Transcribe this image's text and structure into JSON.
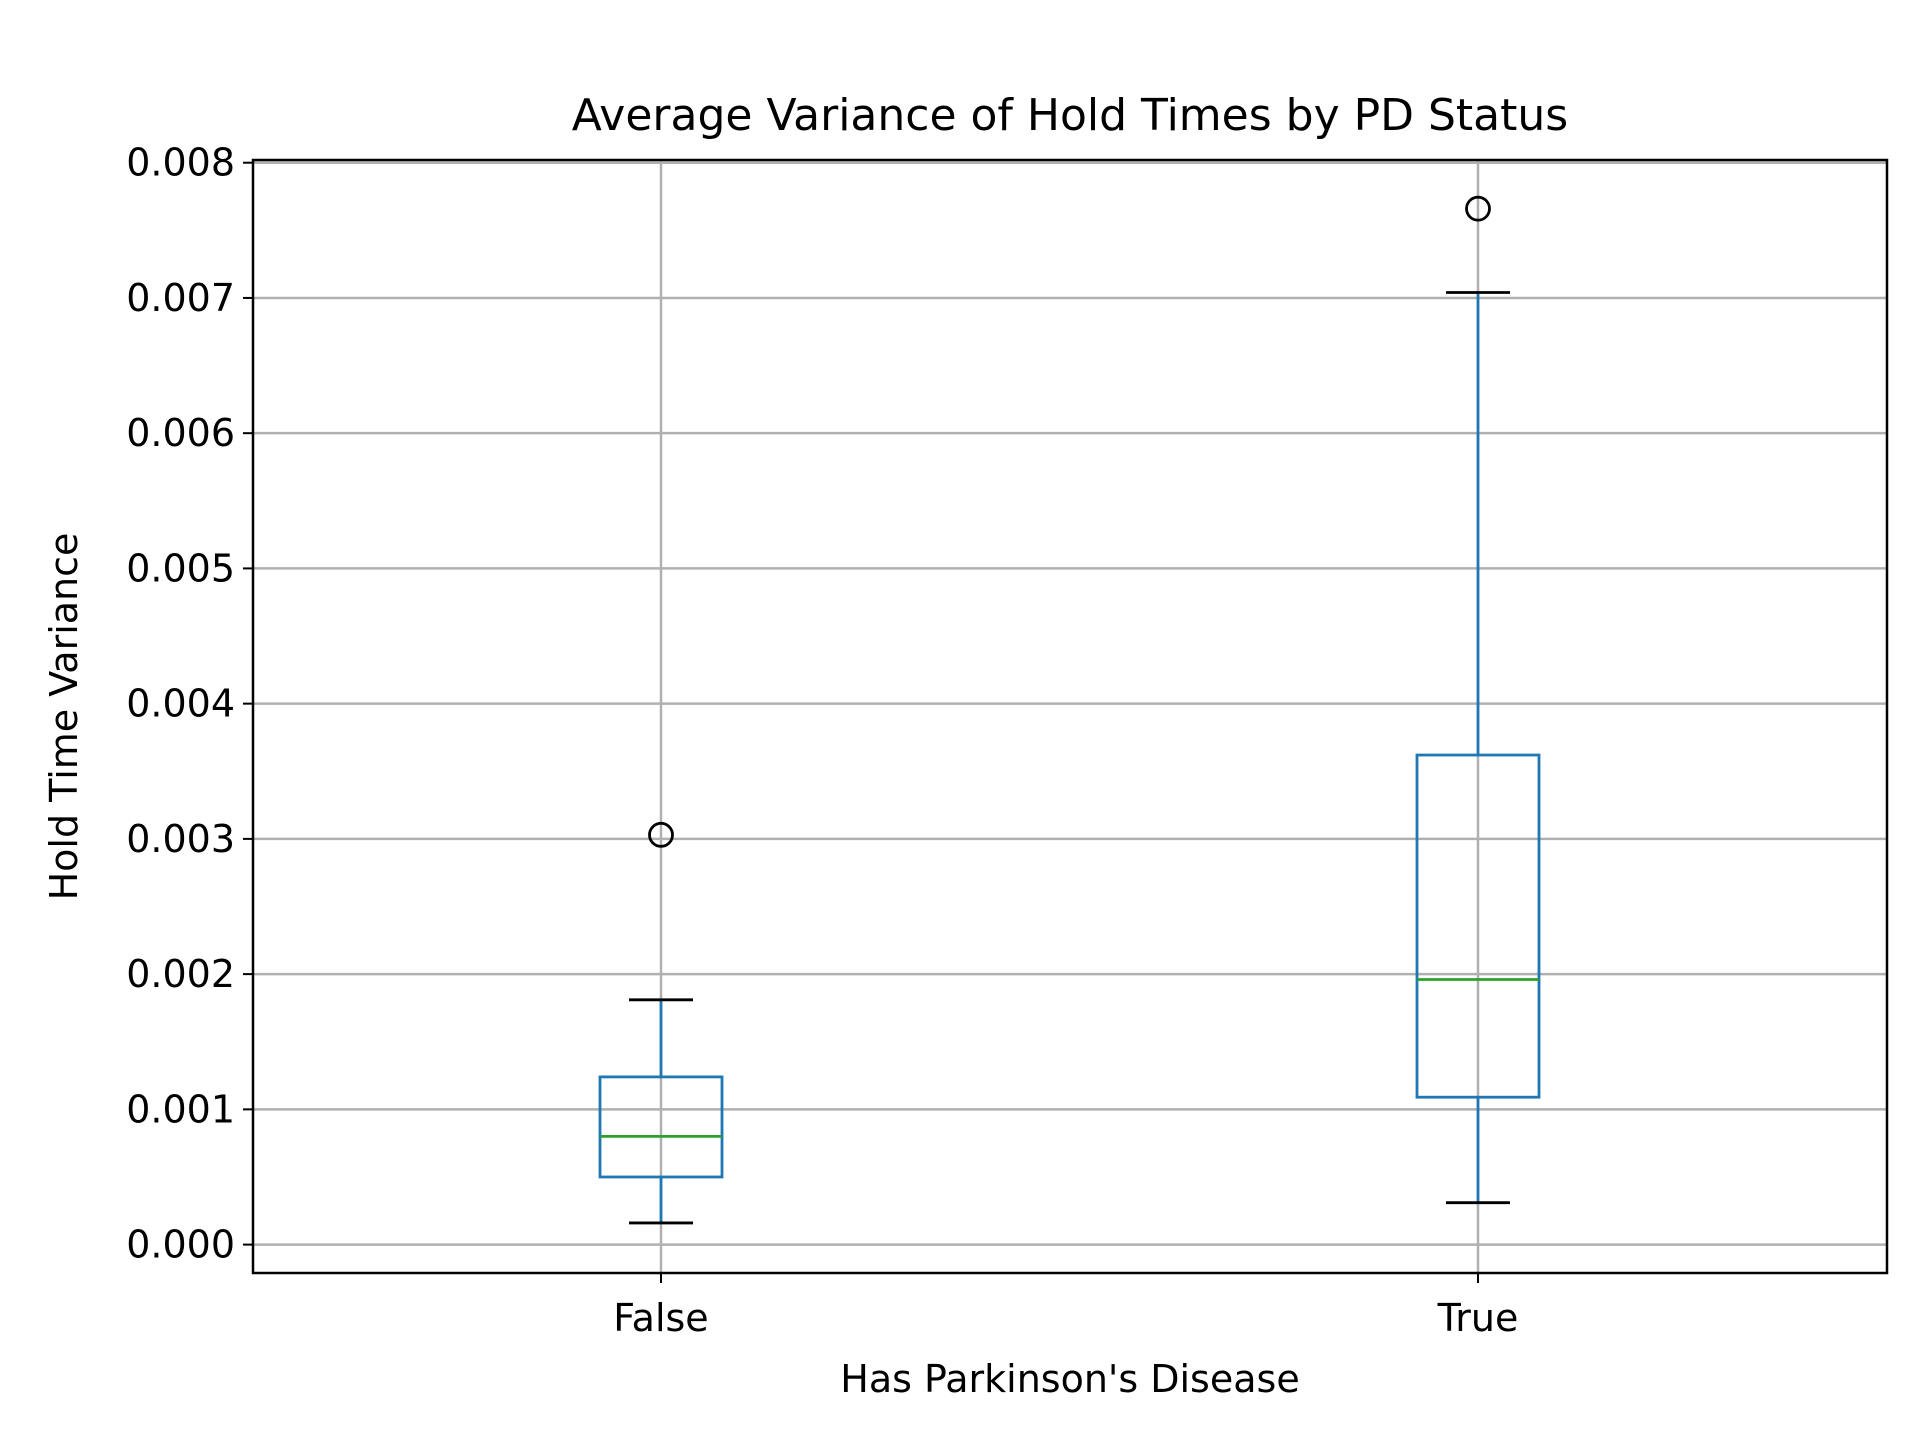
{
  "chart_data": {
    "type": "box",
    "title": "Average Variance of Hold Times by PD Status",
    "xlabel": "Has Parkinson's Disease",
    "ylabel": "Hold Time Variance",
    "categories": [
      "False",
      "True"
    ],
    "ylim": [
      -0.00021,
      0.00802
    ],
    "yticks": [
      0.0,
      0.001,
      0.002,
      0.003,
      0.004,
      0.005,
      0.006,
      0.007,
      0.008
    ],
    "ytick_labels": [
      "0.000",
      "0.001",
      "0.002",
      "0.003",
      "0.004",
      "0.005",
      "0.006",
      "0.007",
      "0.008"
    ],
    "grid": true,
    "boxes": [
      {
        "category": "False",
        "whisker_low": 0.00016,
        "q1": 0.0005,
        "median": 0.0008,
        "q3": 0.00124,
        "whisker_high": 0.00181,
        "outliers": [
          0.00303
        ]
      },
      {
        "category": "True",
        "whisker_low": 0.00031,
        "q1": 0.00109,
        "median": 0.00196,
        "q3": 0.00362,
        "whisker_high": 0.00704,
        "outliers": [
          0.00766
        ]
      }
    ],
    "colors": {
      "box": "#1f77b4",
      "median": "#2ca02c",
      "cap": "#000000",
      "outlier": "#000000",
      "grid": "#b0b0b0",
      "frame": "#000000"
    }
  }
}
